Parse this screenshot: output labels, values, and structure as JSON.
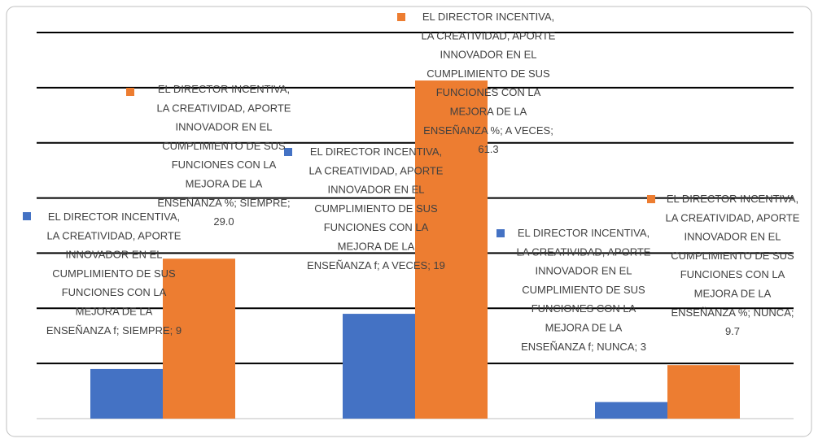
{
  "chart_data": {
    "type": "bar",
    "categories": [
      null,
      null,
      null
    ],
    "series": [
      {
        "color": "#4472c4",
        "values": [
          9,
          19,
          3
        ],
        "value_labels": [
          "EL DIRECTOR INCENTIVA, LA CREATIVIDAD, APORTE INNOVADOR EN EL CUMPLIMIENTO DE SUS FUNCIONES CON LA MEJORA DE LA ENSEÑANZA f; SIEMPRE; 9",
          "EL DIRECTOR INCENTIVA, LA CREATIVIDAD, APORTE INNOVADOR EN EL CUMPLIMIENTO DE SUS FUNCIONES CON LA MEJORA DE LA ENSEÑANZA f; A VECES; 19",
          "EL DIRECTOR INCENTIVA, LA CREATIVIDAD, APORTE INNOVADOR EN EL CUMPLIMIENTO DE SUS FUNCIONES CON LA MEJORA DE LA ENSEÑANZA f; NUNCA; 3"
        ]
      },
      {
        "color": "#ed7d31",
        "values": [
          29.0,
          61.3,
          9.7
        ],
        "value_labels": [
          "EL DIRECTOR INCENTIVA, LA CREATIVIDAD, APORTE INNOVADOR EN EL CUMPLIMIENTO DE SUS FUNCIONES CON LA MEJORA DE LA ENSEÑANZA %; SIEMPRE; 29.0",
          "EL DIRECTOR INCENTIVA, LA CREATIVIDAD, APORTE INNOVADOR EN EL CUMPLIMIENTO DE SUS FUNCIONES CON LA MEJORA DE LA ENSEÑANZA %; A VECES; 61.3",
          "EL DIRECTOR INCENTIVA, LA CREATIVIDAD, APORTE INNOVADOR EN EL CUMPLIMIENTO DE SUS FUNCIONES CON LA MEJORA DE LA ENSEÑANZA %; NUNCA; 9.7"
        ]
      }
    ],
    "ylim": [
      0,
      70
    ],
    "yticks": [
      0,
      10,
      20,
      30,
      40,
      50,
      60,
      70
    ],
    "grid": true
  }
}
